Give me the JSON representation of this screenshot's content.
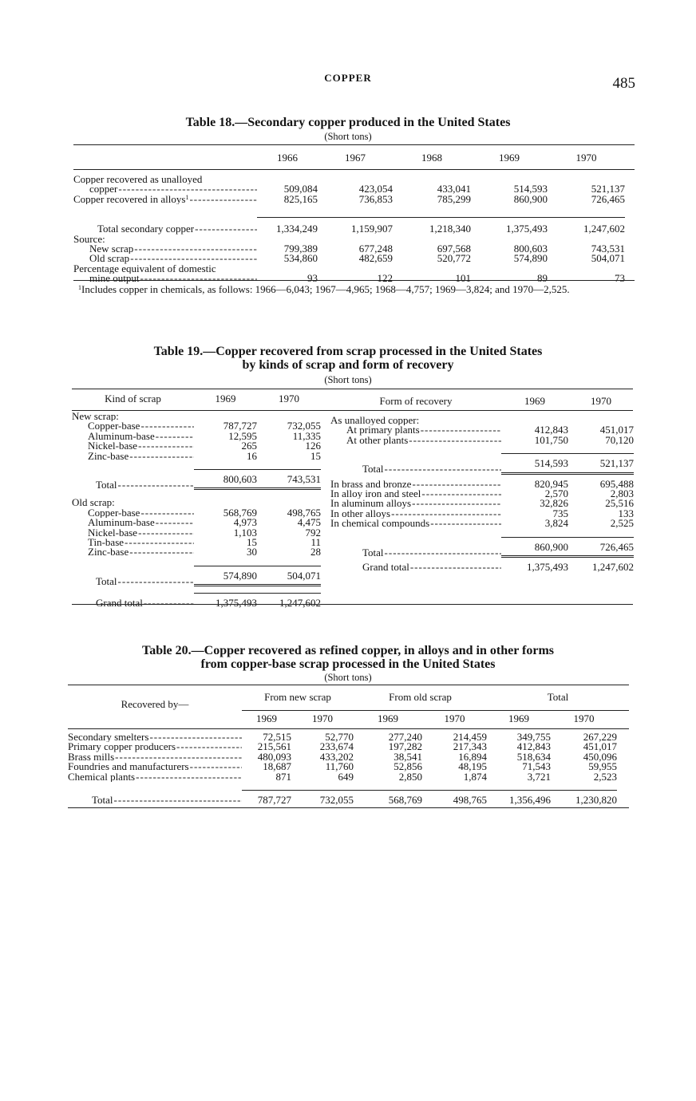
{
  "page": {
    "running_head": "COPPER",
    "page_number": "485"
  },
  "table18": {
    "title": "Table 18.—Secondary copper produced in the United States",
    "unit": "(Short tons)",
    "columns": [
      "1966",
      "1967",
      "1968",
      "1969",
      "1970"
    ],
    "rows": [
      {
        "label": "Copper recovered as unalloyed",
        "indent": 0,
        "kind": "heading"
      },
      {
        "label": "copper",
        "indent": 2,
        "kind": "item",
        "values": [
          "509,084",
          "423,054",
          "433,041",
          "514,593",
          "521,137"
        ]
      },
      {
        "label": "Copper recovered in alloys",
        "note": "1",
        "indent": 0,
        "kind": "item",
        "values": [
          "825,165",
          "736,853",
          "785,299",
          "860,900",
          "726,465"
        ]
      },
      {
        "label": "Total secondary copper",
        "indent": 3,
        "kind": "total",
        "values": [
          "1,334,249",
          "1,159,907",
          "1,218,340",
          "1,375,493",
          "1,247,602"
        ]
      },
      {
        "label": "Source:",
        "indent": 0,
        "kind": "heading"
      },
      {
        "label": "New scrap",
        "indent": 2,
        "kind": "item",
        "values": [
          "799,389",
          "677,248",
          "697,568",
          "800,603",
          "743,531"
        ]
      },
      {
        "label": "Old scrap",
        "indent": 2,
        "kind": "item",
        "values": [
          "534,860",
          "482,659",
          "520,772",
          "574,890",
          "504,071"
        ]
      },
      {
        "label": "Percentage equivalent of domestic",
        "indent": 0,
        "kind": "heading"
      },
      {
        "label": "mine output",
        "indent": 2,
        "kind": "item",
        "values": [
          "93",
          "122",
          "101",
          "89",
          "73"
        ]
      }
    ],
    "footnote": "Includes copper in chemicals, as follows: 1966—6,043; 1967—4,965; 1968—4,757; 1969—3,824; and 1970—2,525.",
    "footnote_mark": "1"
  },
  "table19": {
    "title_line1": "Table 19.—Copper recovered from scrap processed in the United States",
    "title_line2": "by kinds of scrap and form of recovery",
    "unit": "(Short tons)",
    "left": {
      "header": "Kind of scrap",
      "columns": [
        "1969",
        "1970"
      ],
      "rows": [
        {
          "label": "New scrap:",
          "indent": 0,
          "kind": "heading"
        },
        {
          "label": "Copper-base",
          "indent": 2,
          "kind": "item",
          "values": [
            "787,727",
            "732,055"
          ]
        },
        {
          "label": "Aluminum-base",
          "indent": 2,
          "kind": "item",
          "values": [
            "12,595",
            "11,335"
          ]
        },
        {
          "label": "Nickel-base",
          "indent": 2,
          "kind": "item",
          "values": [
            "265",
            "126"
          ]
        },
        {
          "label": "Zinc-base",
          "indent": 2,
          "kind": "item",
          "values": [
            "16",
            "15"
          ]
        },
        {
          "label": "Total",
          "indent": 3,
          "kind": "total",
          "values": [
            "800,603",
            "743,531"
          ]
        },
        {
          "label": "Old scrap:",
          "indent": 0,
          "kind": "heading"
        },
        {
          "label": "Copper-base",
          "indent": 2,
          "kind": "item",
          "values": [
            "568,769",
            "498,765"
          ]
        },
        {
          "label": "Aluminum-base",
          "indent": 2,
          "kind": "item",
          "values": [
            "4,973",
            "4,475"
          ]
        },
        {
          "label": "Nickel-base",
          "indent": 2,
          "kind": "item",
          "values": [
            "1,103",
            "792"
          ]
        },
        {
          "label": "Tin-base",
          "indent": 2,
          "kind": "item",
          "values": [
            "15",
            "11"
          ]
        },
        {
          "label": "Zinc-base",
          "indent": 2,
          "kind": "item",
          "values": [
            "30",
            "28"
          ]
        },
        {
          "label": "Total",
          "indent": 3,
          "kind": "total",
          "values": [
            "574,890",
            "504,071"
          ]
        },
        {
          "label": "Grand total",
          "indent": 3,
          "kind": "grand",
          "values": [
            "1,375,493",
            "1,247,602"
          ]
        }
      ]
    },
    "right": {
      "header": "Form of recovery",
      "columns": [
        "1969",
        "1970"
      ],
      "rows": [
        {
          "label": "As unalloyed copper:",
          "indent": 0,
          "kind": "heading"
        },
        {
          "label": "At primary plants",
          "indent": 2,
          "kind": "item",
          "values": [
            "412,843",
            "451,017"
          ]
        },
        {
          "label": "At other plants",
          "indent": 2,
          "kind": "item",
          "values": [
            "101,750",
            "70,120"
          ]
        },
        {
          "label": "Total",
          "indent": 4,
          "kind": "total",
          "values": [
            "514,593",
            "521,137"
          ]
        },
        {
          "label": "In brass and bronze",
          "indent": 0,
          "kind": "after-total",
          "values": [
            "820,945",
            "695,488"
          ]
        },
        {
          "label": "In alloy iron and steel",
          "indent": 0,
          "kind": "item",
          "values": [
            "2,570",
            "2,803"
          ]
        },
        {
          "label": "In aluminum alloys",
          "indent": 0,
          "kind": "item",
          "values": [
            "32,826",
            "25,516"
          ]
        },
        {
          "label": "In other alloys",
          "indent": 0,
          "kind": "item",
          "values": [
            "735",
            "133"
          ]
        },
        {
          "label": "In chemical compounds",
          "indent": 0,
          "kind": "item",
          "values": [
            "3,824",
            "2,525"
          ]
        },
        {
          "label": "Total",
          "indent": 4,
          "kind": "total",
          "values": [
            "860,900",
            "726,465"
          ]
        },
        {
          "label": "Grand total",
          "indent": 4,
          "kind": "grand",
          "values": [
            "1,375,493",
            "1,247,602"
          ]
        }
      ]
    }
  },
  "table20": {
    "title_line1": "Table 20.—Copper recovered as refined copper, in alloys and in other forms",
    "title_line2": "from copper-base scrap processed in the United States",
    "unit": "(Short tons)",
    "stub_header": "Recovered by—",
    "groups": [
      "From new scrap",
      "From old scrap",
      "Total"
    ],
    "columns": [
      "1969",
      "1970",
      "1969",
      "1970",
      "1969",
      "1970"
    ],
    "rows": [
      {
        "label": "Secondary smelters",
        "indent": 0,
        "kind": "item",
        "values": [
          "72,515",
          "52,770",
          "277,240",
          "214,459",
          "349,755",
          "267,229"
        ]
      },
      {
        "label": "Primary copper producers",
        "indent": 0,
        "kind": "item",
        "values": [
          "215,561",
          "233,674",
          "197,282",
          "217,343",
          "412,843",
          "451,017"
        ]
      },
      {
        "label": "Brass mills",
        "indent": 0,
        "kind": "item",
        "values": [
          "480,093",
          "433,202",
          "38,541",
          "16,894",
          "518,634",
          "450,096"
        ]
      },
      {
        "label": "Foundries and manufacturers",
        "indent": 0,
        "kind": "item",
        "values": [
          "18,687",
          "11,760",
          "52,856",
          "48,195",
          "71,543",
          "59,955"
        ]
      },
      {
        "label": "Chemical plants",
        "indent": 0,
        "kind": "item",
        "values": [
          "871",
          "649",
          "2,850",
          "1,874",
          "3,721",
          "2,523"
        ]
      },
      {
        "label": "Total",
        "indent": 3,
        "kind": "total",
        "values": [
          "787,727",
          "732,055",
          "568,769",
          "498,765",
          "1,356,496",
          "1,230,820"
        ]
      }
    ]
  }
}
